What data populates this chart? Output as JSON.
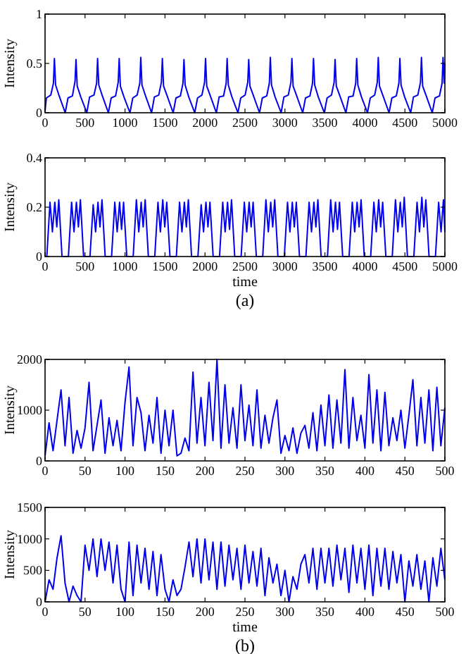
{
  "chart_data": [
    {
      "type": "line",
      "ylabel": "Intensity",
      "xlim": [
        0,
        5000
      ],
      "ylim": [
        0,
        1
      ],
      "xticks": [
        0,
        500,
        1000,
        1500,
        2000,
        2500,
        3000,
        3500,
        4000,
        4500,
        5000
      ],
      "yticks": [
        0,
        0.5,
        1
      ],
      "series": [
        {
          "color": "#0000ee",
          "x": [
            0,
            17,
            72,
            105,
            117,
            132,
            177,
            252,
            287,
            342,
            375,
            387,
            402,
            447,
            522,
            557,
            612,
            645,
            657,
            672,
            717,
            792,
            827,
            882,
            915,
            927,
            942,
            987,
            1062,
            1097,
            1152,
            1185,
            1197,
            1212,
            1257,
            1332,
            1367,
            1422,
            1455,
            1467,
            1482,
            1527,
            1602,
            1637,
            1692,
            1725,
            1737,
            1752,
            1797,
            1872,
            1907,
            1962,
            1995,
            2007,
            2022,
            2067,
            2142,
            2177,
            2232,
            2265,
            2277,
            2292,
            2337,
            2412,
            2447,
            2502,
            2535,
            2547,
            2562,
            2607,
            2682,
            2717,
            2772,
            2805,
            2817,
            2832,
            2877,
            2952,
            2987,
            3042,
            3075,
            3087,
            3102,
            3147,
            3222,
            3257,
            3312,
            3345,
            3357,
            3372,
            3417,
            3492,
            3527,
            3582,
            3615,
            3627,
            3642,
            3687,
            3762,
            3797,
            3852,
            3885,
            3897,
            3912,
            3957,
            4032,
            4067,
            4122,
            4155,
            4167,
            4182,
            4227,
            4302,
            4337,
            4392,
            4425,
            4437,
            4452,
            4497,
            4572,
            4607,
            4662,
            4695,
            4707,
            4722,
            4767,
            4842,
            4877,
            4932,
            4965,
            4977,
            4992,
            5000
          ],
          "values": [
            0.02,
            0.15,
            0.18,
            0.3,
            0.55,
            0.28,
            0.17,
            0,
            0.15,
            0.17,
            0.32,
            0.54,
            0.27,
            0.16,
            0,
            0.16,
            0.18,
            0.3,
            0.55,
            0.28,
            0.17,
            0,
            0.15,
            0.17,
            0.31,
            0.55,
            0.27,
            0.16,
            0,
            0.15,
            0.18,
            0.3,
            0.56,
            0.28,
            0.17,
            0,
            0.16,
            0.18,
            0.31,
            0.55,
            0.27,
            0.17,
            0,
            0.15,
            0.17,
            0.3,
            0.54,
            0.28,
            0.16,
            0,
            0.15,
            0.18,
            0.31,
            0.55,
            0.27,
            0.17,
            0,
            0.16,
            0.17,
            0.3,
            0.55,
            0.28,
            0.16,
            0,
            0.15,
            0.18,
            0.31,
            0.54,
            0.27,
            0.17,
            0,
            0.15,
            0.17,
            0.3,
            0.56,
            0.28,
            0.16,
            0,
            0.16,
            0.18,
            0.31,
            0.55,
            0.27,
            0.17,
            0,
            0.15,
            0.17,
            0.3,
            0.55,
            0.28,
            0.16,
            0,
            0.15,
            0.18,
            0.31,
            0.54,
            0.27,
            0.17,
            0,
            0.16,
            0.17,
            0.3,
            0.55,
            0.28,
            0.16,
            0,
            0.15,
            0.18,
            0.31,
            0.56,
            0.27,
            0.17,
            0,
            0.15,
            0.17,
            0.3,
            0.55,
            0.28,
            0.16,
            0,
            0.16,
            0.18,
            0.31,
            0.56,
            0.27,
            0.17,
            0,
            0.15,
            0.17,
            0.3,
            0.56,
            0.3,
            0.5
          ]
        }
      ]
    },
    {
      "type": "line",
      "xlabel": "time",
      "ylabel": "Intensity",
      "xlim": [
        0,
        5000
      ],
      "ylim": [
        0,
        0.4
      ],
      "xticks": [
        0,
        500,
        1000,
        1500,
        2000,
        2500,
        3000,
        3500,
        4000,
        4500,
        5000
      ],
      "yticks": [
        0,
        0.2,
        0.4
      ],
      "annotations": [
        "(a)"
      ],
      "series": [
        {
          "color": "#0000ee",
          "x": [
            0,
            22,
            62,
            92,
            122,
            147,
            172,
            212,
            292,
            332,
            362,
            392,
            417,
            442,
            482,
            562,
            602,
            632,
            662,
            687,
            712,
            752,
            832,
            872,
            902,
            932,
            957,
            982,
            1022,
            1102,
            1142,
            1172,
            1202,
            1227,
            1252,
            1292,
            1372,
            1412,
            1442,
            1472,
            1497,
            1522,
            1562,
            1642,
            1682,
            1712,
            1742,
            1767,
            1792,
            1832,
            1912,
            1952,
            1982,
            2012,
            2037,
            2062,
            2102,
            2182,
            2222,
            2252,
            2282,
            2307,
            2332,
            2372,
            2452,
            2492,
            2522,
            2552,
            2577,
            2602,
            2642,
            2722,
            2762,
            2792,
            2822,
            2847,
            2872,
            2912,
            2992,
            3032,
            3062,
            3092,
            3117,
            3142,
            3182,
            3262,
            3302,
            3332,
            3362,
            3387,
            3412,
            3452,
            3532,
            3572,
            3602,
            3632,
            3657,
            3682,
            3722,
            3802,
            3842,
            3872,
            3902,
            3927,
            3952,
            3992,
            4072,
            4112,
            4142,
            4172,
            4197,
            4222,
            4262,
            4342,
            4382,
            4412,
            4442,
            4467,
            4492,
            4532,
            4612,
            4652,
            4682,
            4712,
            4737,
            4762,
            4802,
            4882,
            4922,
            4952,
            4982,
            5000
          ],
          "values": [
            0,
            0,
            0.22,
            0.1,
            0.22,
            0.12,
            0.23,
            0,
            0,
            0.22,
            0.1,
            0.22,
            0.12,
            0.23,
            0,
            0,
            0.21,
            0.1,
            0.22,
            0.12,
            0.23,
            0,
            0,
            0.22,
            0.1,
            0.22,
            0.11,
            0.22,
            0,
            0,
            0.23,
            0.1,
            0.22,
            0.12,
            0.23,
            0,
            0,
            0.22,
            0.1,
            0.23,
            0.12,
            0.22,
            0,
            0,
            0.22,
            0.1,
            0.22,
            0.12,
            0.23,
            0,
            0,
            0.21,
            0.1,
            0.22,
            0.12,
            0.22,
            0,
            0,
            0.22,
            0.1,
            0.22,
            0.11,
            0.23,
            0,
            0,
            0.22,
            0.1,
            0.22,
            0.12,
            0.22,
            0,
            0,
            0.23,
            0.1,
            0.22,
            0.12,
            0.23,
            0,
            0,
            0.22,
            0.1,
            0.22,
            0.12,
            0.22,
            0,
            0,
            0.22,
            0.1,
            0.22,
            0.12,
            0.23,
            0,
            0,
            0.23,
            0.1,
            0.22,
            0.11,
            0.22,
            0,
            0,
            0.22,
            0.1,
            0.22,
            0.12,
            0.23,
            0,
            0,
            0.22,
            0.1,
            0.23,
            0.12,
            0.22,
            0,
            0,
            0.23,
            0.1,
            0.22,
            0.12,
            0.24,
            0,
            0,
            0.22,
            0.1,
            0.24,
            0.12,
            0.23,
            0,
            0,
            0.22,
            0.1,
            0.23,
            0.1
          ]
        }
      ]
    },
    {
      "type": "line",
      "ylabel": "Intensity",
      "xlim": [
        0,
        500
      ],
      "ylim": [
        0,
        2000
      ],
      "xticks": [
        0,
        50,
        100,
        150,
        200,
        250,
        300,
        350,
        400,
        450,
        500
      ],
      "yticks": [
        0,
        1000,
        2000
      ],
      "series": [
        {
          "color": "#0000ee",
          "x": [
            0,
            5,
            10,
            15,
            20,
            25,
            30,
            35,
            40,
            45,
            50,
            55,
            60,
            65,
            70,
            75,
            80,
            85,
            90,
            95,
            100,
            105,
            110,
            115,
            120,
            125,
            130,
            135,
            140,
            145,
            150,
            155,
            160,
            165,
            170,
            175,
            180,
            185,
            190,
            195,
            200,
            205,
            210,
            215,
            220,
            225,
            230,
            235,
            240,
            245,
            250,
            255,
            260,
            265,
            270,
            275,
            280,
            285,
            290,
            295,
            300,
            305,
            310,
            315,
            320,
            325,
            330,
            335,
            340,
            345,
            350,
            355,
            360,
            365,
            370,
            375,
            380,
            385,
            390,
            395,
            400,
            405,
            410,
            415,
            420,
            425,
            430,
            435,
            440,
            445,
            450,
            455,
            460,
            465,
            470,
            475,
            480,
            485,
            490,
            495,
            500
          ],
          "values": [
            100,
            750,
            200,
            800,
            1400,
            300,
            1250,
            150,
            600,
            250,
            650,
            1550,
            200,
            700,
            1200,
            150,
            850,
            300,
            800,
            200,
            1150,
            1850,
            300,
            1250,
            950,
            200,
            900,
            350,
            1250,
            150,
            1000,
            300,
            1000,
            100,
            150,
            450,
            200,
            1750,
            350,
            1250,
            300,
            1550,
            400,
            2000,
            250,
            1500,
            350,
            1050,
            250,
            1500,
            400,
            1100,
            300,
            1400,
            250,
            900,
            350,
            850,
            1200,
            150,
            500,
            200,
            650,
            150,
            550,
            700,
            250,
            950,
            200,
            1100,
            300,
            1300,
            250,
            1200,
            350,
            1800,
            250,
            1250,
            400,
            900,
            250,
            1700,
            350,
            1400,
            200,
            1350,
            300,
            850,
            400,
            1000,
            250,
            900,
            1600,
            300,
            1250,
            350,
            1400,
            200,
            1450,
            300,
            1050
          ]
        }
      ]
    },
    {
      "type": "line",
      "xlabel": "time",
      "ylabel": "Intensity",
      "xlim": [
        0,
        500
      ],
      "ylim": [
        0,
        1500
      ],
      "xticks": [
        0,
        50,
        100,
        150,
        200,
        250,
        300,
        350,
        400,
        450,
        500
      ],
      "yticks": [
        0,
        500,
        1000,
        1500
      ],
      "annotations": [
        "(b)"
      ],
      "series": [
        {
          "color": "#0000ee",
          "x": [
            0,
            5,
            10,
            15,
            20,
            25,
            30,
            35,
            40,
            45,
            50,
            55,
            60,
            65,
            70,
            75,
            80,
            85,
            90,
            95,
            100,
            105,
            110,
            115,
            120,
            125,
            130,
            135,
            140,
            145,
            150,
            155,
            160,
            165,
            170,
            175,
            180,
            185,
            190,
            195,
            200,
            205,
            210,
            215,
            220,
            225,
            230,
            235,
            240,
            245,
            250,
            255,
            260,
            265,
            270,
            275,
            280,
            285,
            290,
            295,
            300,
            305,
            310,
            315,
            320,
            325,
            330,
            335,
            340,
            345,
            350,
            355,
            360,
            365,
            370,
            375,
            380,
            385,
            390,
            395,
            400,
            405,
            410,
            415,
            420,
            425,
            430,
            435,
            440,
            445,
            450,
            455,
            460,
            465,
            470,
            475,
            480,
            485,
            490,
            495,
            500
          ],
          "values": [
            0,
            350,
            200,
            700,
            1050,
            300,
            0,
            250,
            100,
            0,
            900,
            500,
            1000,
            400,
            1000,
            500,
            950,
            300,
            900,
            200,
            0,
            950,
            100,
            900,
            300,
            850,
            200,
            800,
            100,
            750,
            200,
            0,
            350,
            100,
            200,
            550,
            950,
            400,
            1000,
            300,
            1000,
            350,
            950,
            200,
            950,
            250,
            900,
            350,
            850,
            200,
            900,
            300,
            800,
            250,
            850,
            100,
            700,
            300,
            600,
            100,
            500,
            0,
            400,
            200,
            600,
            750,
            300,
            850,
            200,
            850,
            300,
            850,
            250,
            900,
            350,
            850,
            150,
            900,
            300,
            850,
            200,
            900,
            100,
            850,
            250,
            850,
            200,
            800,
            300,
            750,
            0,
            650,
            250,
            750,
            200,
            650,
            0,
            700,
            250,
            850,
            350
          ]
        }
      ]
    }
  ]
}
